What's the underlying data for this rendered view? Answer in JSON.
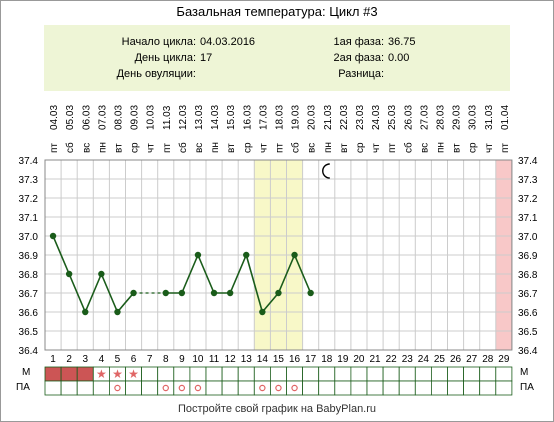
{
  "title": "Базальная температура: Цикл #3",
  "info": {
    "cycle_start_label": "Начало цикла:",
    "cycle_start_value": "04.03.2016",
    "cycle_day_label": "День цикла:",
    "cycle_day_value": "17",
    "ovulation_day_label": "День овуляции:",
    "ovulation_day_value": "",
    "phase1_label": "1ая фаза:",
    "phase1_value": "36.75",
    "phase2_label": "2ая фаза:",
    "phase2_value": "0.00",
    "diff_label": "Разница:",
    "diff_value": ""
  },
  "footer": "Постройте свой график на BabyPlan.ru",
  "row_labels": {
    "menstruation": "М",
    "intercourse": "ПА"
  },
  "colors": {
    "line": "#1a5c1a",
    "ovulation_band": "#f8f8c8",
    "last_day_band": "#f8c8c8",
    "menstruation_fill": "#cc5555",
    "star": "#e06666",
    "grid": "#cccccc",
    "header_bg": "#eef5d6"
  },
  "chart_data": {
    "type": "line",
    "weekdays": [
      "пт",
      "сб",
      "вс",
      "пн",
      "вт",
      "ср",
      "чт",
      "пт",
      "сб",
      "вс",
      "пн",
      "вт",
      "ср",
      "чт",
      "пт",
      "сб",
      "вс",
      "пн",
      "вт",
      "ср",
      "чт",
      "пт",
      "сб",
      "вс",
      "пн",
      "вт",
      "ср",
      "чт",
      "пт"
    ],
    "dates": [
      "04.03",
      "05.03",
      "06.03",
      "07.03",
      "08.03",
      "09.03",
      "10.03",
      "11.03",
      "12.03",
      "13.03",
      "14.03",
      "15.03",
      "16.03",
      "17.03",
      "18.03",
      "19.03",
      "20.03",
      "21.03",
      "22.03",
      "23.03",
      "24.03",
      "25.03",
      "26.03",
      "27.03",
      "28.03",
      "29.03",
      "30.03",
      "31.03",
      "01.04"
    ],
    "days": [
      "1",
      "2",
      "3",
      "4",
      "5",
      "6",
      "7",
      "8",
      "9",
      "10",
      "11",
      "12",
      "13",
      "14",
      "15",
      "16",
      "17",
      "18",
      "19",
      "20",
      "21",
      "22",
      "23",
      "24",
      "25",
      "26",
      "27",
      "28",
      "29"
    ],
    "y_ticks": [
      "37.4",
      "37.3",
      "37.2",
      "37.1",
      "37.0",
      "36.9",
      "36.8",
      "36.7",
      "36.6",
      "36.5",
      "36.4"
    ],
    "ylim": [
      36.4,
      37.4
    ],
    "temperatures": [
      37.0,
      36.8,
      36.6,
      36.8,
      36.6,
      36.7,
      null,
      36.7,
      36.7,
      36.9,
      36.7,
      36.7,
      36.9,
      36.6,
      36.7,
      36.9,
      36.7,
      null,
      null,
      null,
      null,
      null,
      null,
      null,
      null,
      null,
      null,
      null,
      null
    ],
    "dashed_gap": [
      6,
      8
    ],
    "ovulation_window_days": [
      14,
      16
    ],
    "highlight_last_day": 29,
    "moon_day": 18,
    "menstruation_full_days": [
      1,
      2,
      3
    ],
    "menstruation_star_days": [
      4,
      5,
      6
    ],
    "intercourse_days": [
      5,
      8,
      9,
      10,
      14,
      15,
      16
    ]
  }
}
